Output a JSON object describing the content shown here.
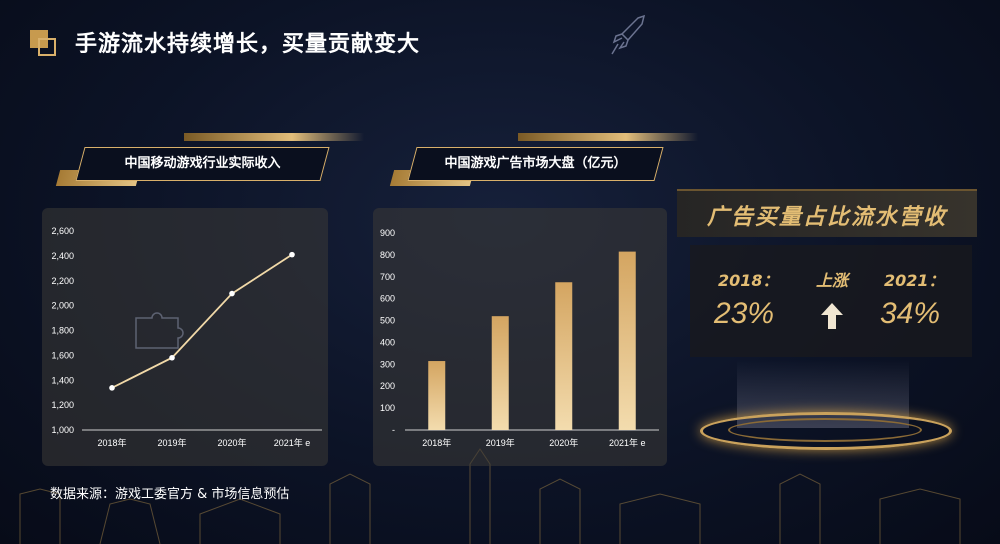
{
  "header": {
    "title": "手游流水持续增长，买量贡献变大"
  },
  "left_chart": {
    "heading": "中国移动游戏行业实际收入"
  },
  "mid_chart": {
    "heading": "中国游戏广告市场大盘（亿元）"
  },
  "right_panel": {
    "title": "广告买量占比流水营收",
    "year_a": "2018：",
    "value_a": "23%",
    "trend": "上涨",
    "year_b": "2021：",
    "value_b": "34%"
  },
  "source": "数据来源：游戏工委官方 & 市场信息预估",
  "icons": [
    "rocket-icon",
    "up-arrow-icon",
    "puzzle-icon"
  ],
  "colors": {
    "gold": "#d9b06a",
    "line": "#f1d9a8",
    "bg": "#0c1326"
  },
  "chart_data": [
    {
      "type": "line",
      "title": "中国移动游戏行业实际收入",
      "categories": [
        "2018年",
        "2019年",
        "2020年",
        "2021年 e"
      ],
      "values": [
        1339,
        1581,
        2097,
        2410
      ],
      "yticks": [
        "1,000",
        "1,200",
        "1,400",
        "1,600",
        "1,800",
        "2,000",
        "2,200",
        "2,400",
        "2,600"
      ],
      "ylim": [
        1000,
        2600
      ]
    },
    {
      "type": "bar",
      "title": "中国游戏广告市场大盘（亿元）",
      "categories": [
        "2018年",
        "2019年",
        "2020年",
        "2021年 e"
      ],
      "values": [
        315,
        520,
        675,
        815
      ],
      "yticks": [
        "-",
        "100",
        "200",
        "300",
        "400",
        "500",
        "600",
        "700",
        "800",
        "900"
      ],
      "ylim": [
        0,
        900
      ]
    }
  ]
}
